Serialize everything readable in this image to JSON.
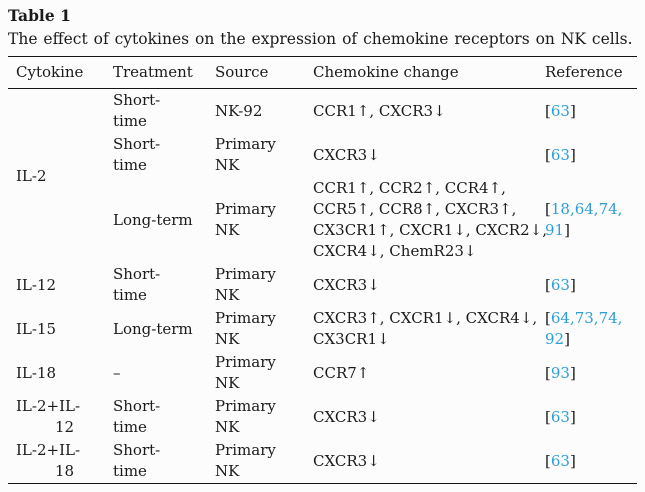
{
  "caption": {
    "label": "Table 1",
    "description": "The effect of cytokines on the expression of chemokine receptors on NK cells."
  },
  "punct": {
    "open_bracket": "[",
    "close_bracket": "]"
  },
  "colors": {
    "link_blue": "#2e9ed8",
    "text": "#1b1b1b",
    "rule": "#141414",
    "background": "#fcfcfc"
  },
  "table": {
    "columns": [
      "Cytokine",
      "Treatment",
      "Source",
      "Chemokine change",
      "Reference"
    ],
    "rows": [
      {
        "cytokine": "IL-2",
        "treatment": "Short-\ntime",
        "source": "NK-92",
        "chemokine": "CCR1↑, CXCR3↓",
        "ref_numbers": "63"
      },
      {
        "treatment": "Short-\ntime",
        "source": "Primary\nNK",
        "chemokine": "CXCR3↓",
        "ref_numbers": "63"
      },
      {
        "treatment": "Long-term",
        "source": "Primary\nNK",
        "chemokine": "CCR1↑, CCR2↑, CCR4↑,\nCCR5↑, CCR8↑, CXCR3↑,\nCX3CR1↑, CXCR1↓, CXCR2↓,\nCXCR4↓, ChemR23↓",
        "ref_numbers": "18,64,74,\n91"
      },
      {
        "cytokine": "IL-12",
        "treatment": "Short-\ntime",
        "source": "Primary\nNK",
        "chemokine": "CXCR3↓",
        "ref_numbers": "63"
      },
      {
        "cytokine": "IL-15",
        "treatment": "Long-term",
        "source": "Primary\nNK",
        "chemokine": "CXCR3↑, CXCR1↓, CXCR4↓,\nCX3CR1↓",
        "ref_numbers": "64,73,74,\n92"
      },
      {
        "cytokine": "IL-18",
        "treatment": "–",
        "source": "Primary\nNK",
        "chemokine": "CCR7↑",
        "ref_numbers": "93"
      },
      {
        "cytokine": "IL-2+IL-\n12",
        "treatment": "Short-\ntime",
        "source": "Primary\nNK",
        "chemokine": "CXCR3↓",
        "ref_numbers": "63"
      },
      {
        "cytokine": "IL-2+IL-\n18",
        "treatment": "Short-\ntime",
        "source": "Primary\nNK",
        "chemokine": "CXCR3↓",
        "ref_numbers": "63"
      }
    ]
  }
}
